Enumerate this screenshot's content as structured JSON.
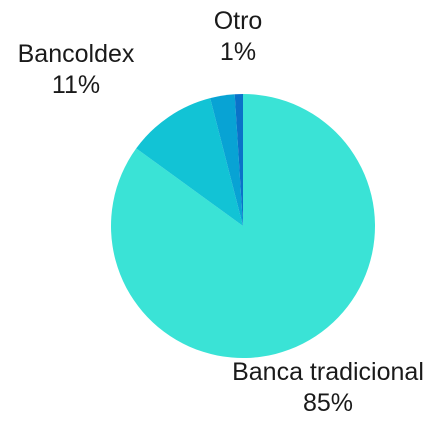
{
  "chart_data": {
    "type": "pie",
    "title": "",
    "slices": [
      {
        "label": "Banca tradicional",
        "value": 85,
        "value_label": "85%",
        "color": "#3ae3d6"
      },
      {
        "label": "Bancoldex",
        "value": 11,
        "value_label": "11%",
        "color": "#12c3d5"
      },
      {
        "label": "",
        "value": 3,
        "value_label": "",
        "color": "#08a3d4"
      },
      {
        "label": "Otro",
        "value": 1,
        "value_label": "1%",
        "color": "#0a72c9"
      }
    ],
    "start_angle_deg": 0,
    "direction": "clockwise",
    "legend": "none"
  }
}
